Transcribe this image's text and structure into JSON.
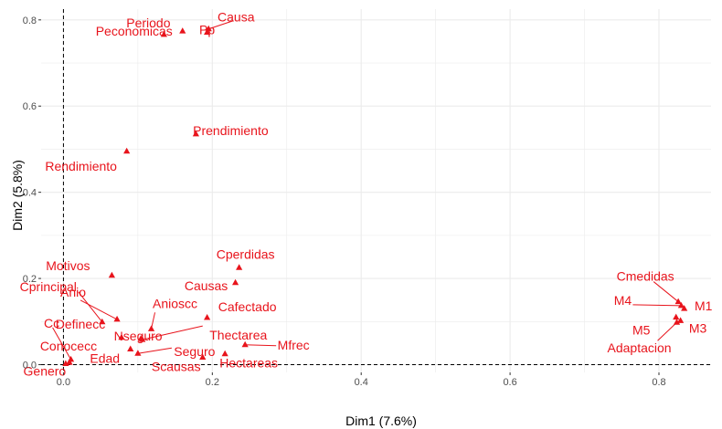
{
  "chart_data": {
    "type": "scatter",
    "title": "",
    "xlabel": "Dim1 (7.6%)",
    "ylabel": "Dim2 (5.8%)",
    "xlim": [
      -0.03,
      0.87
    ],
    "ylim": [
      -0.018,
      0.825
    ],
    "x_ticks": [
      0.0,
      0.2,
      0.4,
      0.6,
      0.8
    ],
    "x_tick_labels": [
      "0.0",
      "0.2",
      "0.4",
      "0.6",
      "0.8"
    ],
    "y_ticks": [
      0.0,
      0.2,
      0.4,
      0.6,
      0.8
    ],
    "y_tick_labels": [
      "0.0",
      "0.2",
      "0.4",
      "0.6",
      "0.8"
    ],
    "grid": true,
    "reference_lines": {
      "x": 0,
      "y": 0,
      "style": "dashed"
    },
    "marker": "triangle",
    "point_color": "#e8141c",
    "points": [
      {
        "label": "Periodo",
        "x": 0.135,
        "y": 0.766
      },
      {
        "label": "Causa",
        "x": 0.195,
        "y": 0.779
      },
      {
        "label": "Peconomicas",
        "x": 0.16,
        "y": 0.774
      },
      {
        "label": "Pp",
        "x": 0.193,
        "y": 0.771
      },
      {
        "label": "Prendimiento",
        "x": 0.178,
        "y": 0.535
      },
      {
        "label": "Rendimiento",
        "x": 0.085,
        "y": 0.495
      },
      {
        "label": "Cperdidas",
        "x": 0.236,
        "y": 0.225
      },
      {
        "label": "Causas",
        "x": 0.231,
        "y": 0.19
      },
      {
        "label": "Motivos",
        "x": 0.065,
        "y": 0.207
      },
      {
        "label": "Cprincipal",
        "x": 0.052,
        "y": 0.099
      },
      {
        "label": "Anio",
        "x": 0.072,
        "y": 0.105
      },
      {
        "label": "Definecc",
        "x": 0.078,
        "y": 0.063
      },
      {
        "label": "Anioscc",
        "x": 0.118,
        "y": 0.083
      },
      {
        "label": "Cafectado",
        "x": 0.193,
        "y": 0.109
      },
      {
        "label": "Nseguro",
        "x": 0.104,
        "y": 0.06
      },
      {
        "label": "Thectarea",
        "x": 0.106,
        "y": 0.058
      },
      {
        "label": "Cc",
        "x": 0.01,
        "y": 0.012
      },
      {
        "label": "Conocecc",
        "x": 0.008,
        "y": 0.005
      },
      {
        "label": "Genero",
        "x": 0.003,
        "y": 0.002
      },
      {
        "label": "Edad",
        "x": 0.09,
        "y": 0.036
      },
      {
        "label": "Seguro",
        "x": 0.1,
        "y": 0.026
      },
      {
        "label": "Scausas",
        "x": 0.187,
        "y": 0.017
      },
      {
        "label": "Hectareas",
        "x": 0.217,
        "y": 0.025
      },
      {
        "label": "Mfrec",
        "x": 0.244,
        "y": 0.046
      },
      {
        "label": "Cmedidas",
        "x": 0.826,
        "y": 0.146
      },
      {
        "label": "M4",
        "x": 0.83,
        "y": 0.137
      },
      {
        "label": "M1",
        "x": 0.834,
        "y": 0.13
      },
      {
        "label": "M5",
        "x": 0.823,
        "y": 0.11
      },
      {
        "label": "M3",
        "x": 0.829,
        "y": 0.102
      },
      {
        "label": "Adaptacion",
        "x": 0.824,
        "y": 0.098
      }
    ]
  }
}
